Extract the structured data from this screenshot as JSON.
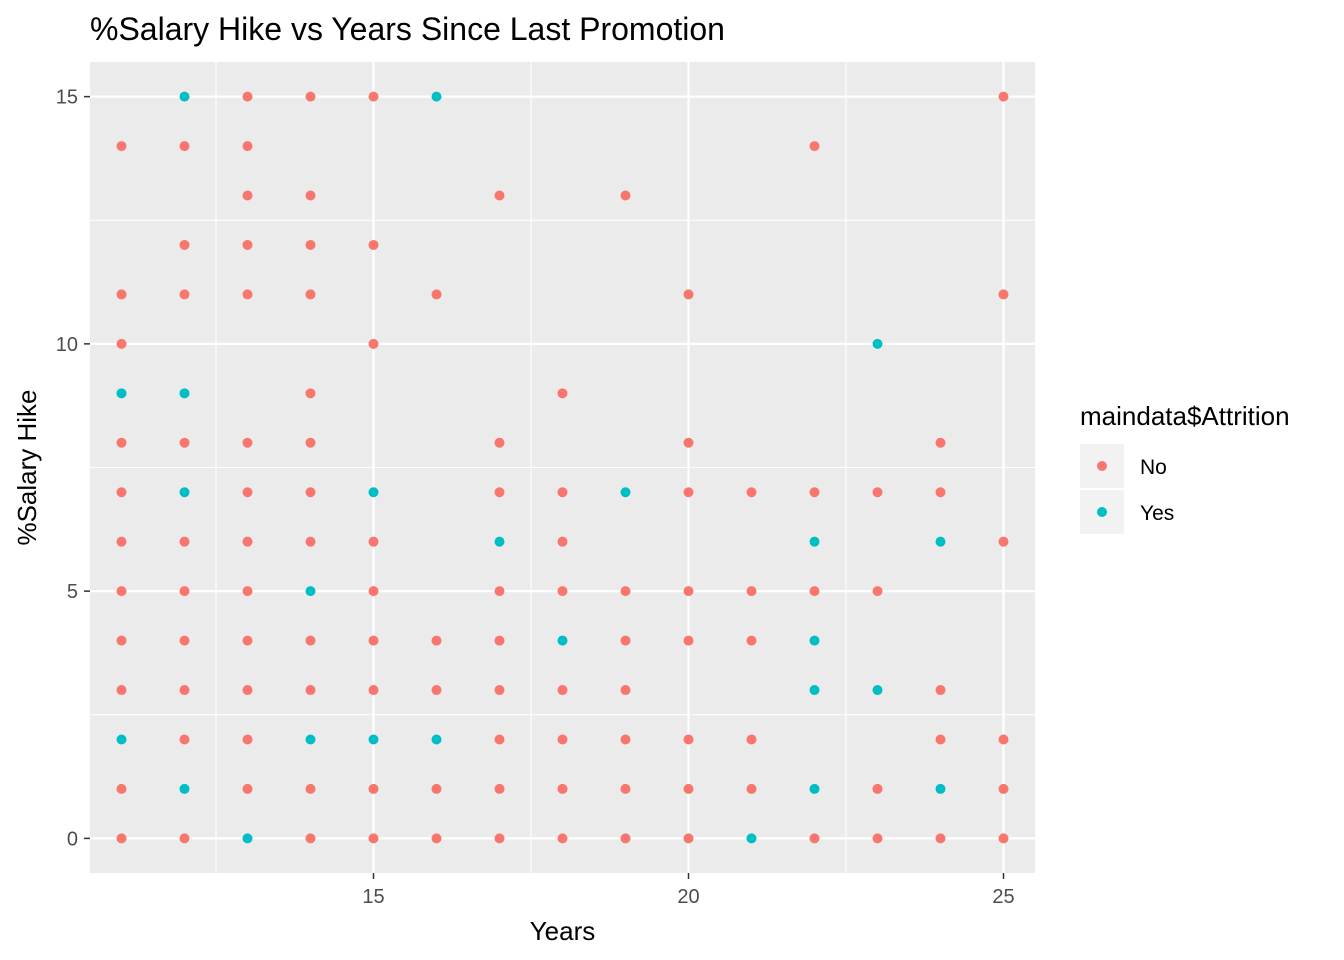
{
  "chart_data": {
    "type": "scatter",
    "title": "%Salary Hike vs Years Since Last Promotion",
    "xlabel": "Years",
    "ylabel": "%Salary Hike",
    "xlim": [
      10.5,
      25.5
    ],
    "ylim": [
      -0.7,
      15.7
    ],
    "x_ticks": [
      15,
      20,
      25
    ],
    "y_ticks": [
      0,
      5,
      10,
      15
    ],
    "grid": true,
    "legend": {
      "title": "maindata$Attrition",
      "position": "right"
    },
    "colors": {
      "panel": "#EBEBEB",
      "grid": "#FFFFFF",
      "No": "#F8766D",
      "Yes": "#00BFC4"
    },
    "series": [
      {
        "name": "No",
        "color": "#F8766D",
        "points": [
          [
            11,
            14
          ],
          [
            11,
            11
          ],
          [
            11,
            10
          ],
          [
            11,
            8
          ],
          [
            11,
            7
          ],
          [
            11,
            6
          ],
          [
            11,
            5
          ],
          [
            11,
            4
          ],
          [
            11,
            3
          ],
          [
            11,
            1
          ],
          [
            11,
            0
          ],
          [
            12,
            14
          ],
          [
            12,
            12
          ],
          [
            12,
            11
          ],
          [
            12,
            8
          ],
          [
            12,
            6
          ],
          [
            12,
            5
          ],
          [
            12,
            4
          ],
          [
            12,
            3
          ],
          [
            12,
            2
          ],
          [
            12,
            0
          ],
          [
            13,
            15
          ],
          [
            13,
            14
          ],
          [
            13,
            13
          ],
          [
            13,
            12
          ],
          [
            13,
            11
          ],
          [
            13,
            8
          ],
          [
            13,
            7
          ],
          [
            13,
            6
          ],
          [
            13,
            5
          ],
          [
            13,
            4
          ],
          [
            13,
            3
          ],
          [
            13,
            2
          ],
          [
            13,
            1
          ],
          [
            14,
            15
          ],
          [
            14,
            13
          ],
          [
            14,
            12
          ],
          [
            14,
            11
          ],
          [
            14,
            9
          ],
          [
            14,
            8
          ],
          [
            14,
            7
          ],
          [
            14,
            6
          ],
          [
            14,
            4
          ],
          [
            14,
            3
          ],
          [
            14,
            1
          ],
          [
            14,
            0
          ],
          [
            15,
            15
          ],
          [
            15,
            12
          ],
          [
            15,
            10
          ],
          [
            15,
            6
          ],
          [
            15,
            5
          ],
          [
            15,
            4
          ],
          [
            15,
            3
          ],
          [
            15,
            1
          ],
          [
            15,
            0
          ],
          [
            16,
            11
          ],
          [
            16,
            4
          ],
          [
            16,
            3
          ],
          [
            16,
            1
          ],
          [
            16,
            0
          ],
          [
            17,
            13
          ],
          [
            17,
            8
          ],
          [
            17,
            7
          ],
          [
            17,
            5
          ],
          [
            17,
            4
          ],
          [
            17,
            3
          ],
          [
            17,
            2
          ],
          [
            17,
            1
          ],
          [
            17,
            0
          ],
          [
            18,
            9
          ],
          [
            18,
            7
          ],
          [
            18,
            6
          ],
          [
            18,
            5
          ],
          [
            18,
            3
          ],
          [
            18,
            2
          ],
          [
            18,
            1
          ],
          [
            18,
            0
          ],
          [
            19,
            13
          ],
          [
            19,
            5
          ],
          [
            19,
            4
          ],
          [
            19,
            3
          ],
          [
            19,
            2
          ],
          [
            19,
            1
          ],
          [
            19,
            0
          ],
          [
            20,
            11
          ],
          [
            20,
            8
          ],
          [
            20,
            7
          ],
          [
            20,
            5
          ],
          [
            20,
            4
          ],
          [
            20,
            2
          ],
          [
            20,
            1
          ],
          [
            20,
            0
          ],
          [
            21,
            7
          ],
          [
            21,
            5
          ],
          [
            21,
            4
          ],
          [
            21,
            2
          ],
          [
            21,
            1
          ],
          [
            22,
            14
          ],
          [
            22,
            7
          ],
          [
            22,
            5
          ],
          [
            22,
            0
          ],
          [
            23,
            7
          ],
          [
            23,
            5
          ],
          [
            23,
            1
          ],
          [
            23,
            0
          ],
          [
            24,
            8
          ],
          [
            24,
            7
          ],
          [
            24,
            3
          ],
          [
            24,
            2
          ],
          [
            24,
            0
          ],
          [
            25,
            15
          ],
          [
            25,
            11
          ],
          [
            25,
            6
          ],
          [
            25,
            2
          ],
          [
            25,
            1
          ],
          [
            25,
            0
          ]
        ]
      },
      {
        "name": "Yes",
        "color": "#00BFC4",
        "points": [
          [
            11,
            9
          ],
          [
            11,
            2
          ],
          [
            12,
            15
          ],
          [
            12,
            9
          ],
          [
            12,
            7
          ],
          [
            12,
            1
          ],
          [
            13,
            0
          ],
          [
            14,
            5
          ],
          [
            14,
            2
          ],
          [
            15,
            7
          ],
          [
            15,
            2
          ],
          [
            16,
            15
          ],
          [
            16,
            2
          ],
          [
            17,
            6
          ],
          [
            18,
            4
          ],
          [
            19,
            7
          ],
          [
            21,
            0
          ],
          [
            22,
            6
          ],
          [
            22,
            4
          ],
          [
            22,
            3
          ],
          [
            22,
            1
          ],
          [
            23,
            10
          ],
          [
            23,
            3
          ],
          [
            24,
            6
          ],
          [
            24,
            1
          ]
        ]
      }
    ]
  }
}
